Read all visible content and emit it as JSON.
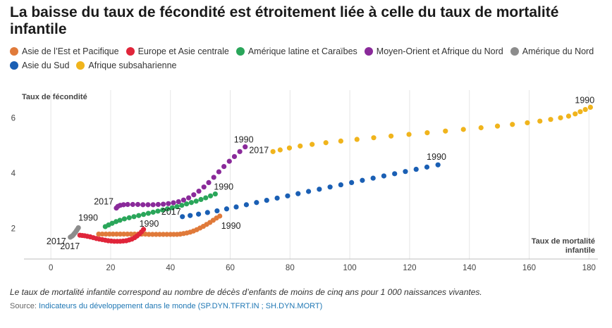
{
  "title": "La baisse du taux de fécondité est étroitement liée à celle du taux de mortalité infantile",
  "note": "Le taux de mortalité infantile correspond au nombre de décès d’enfants de moins de cinq ans pour 1 000 naissances vivantes.",
  "source_label": "Source:",
  "source_link": "Indicateurs du développement dans le monde (SP.DYN.TFRT.IN ; SH.DYN.MORT)",
  "chart_data": {
    "type": "scatter",
    "title": "La baisse du taux de fécondité est étroitement liée à celle du taux de mortalité infantile",
    "xlabel": "Taux de mortalité infantile",
    "ylabel": "Taux de fécondité",
    "xlim": [
      -9,
      183
    ],
    "ylim": [
      0.9,
      7.0
    ],
    "xticks": [
      0,
      20,
      40,
      60,
      80,
      100,
      120,
      140,
      160,
      180
    ],
    "yticks": [
      2,
      4,
      6
    ],
    "grid": "vertical",
    "legend_position": "top",
    "series": [
      {
        "name": "Asie de l’Est et Pacifique",
        "color": "#e07a3a",
        "label_start": "1990",
        "label_end": "",
        "points": [
          [
            56.5,
            2.45
          ],
          [
            55.4,
            2.38
          ],
          [
            54.3,
            2.3
          ],
          [
            53.2,
            2.22
          ],
          [
            52.1,
            2.15
          ],
          [
            51,
            2.08
          ],
          [
            49.9,
            2.02
          ],
          [
            48.8,
            1.96
          ],
          [
            47.7,
            1.91
          ],
          [
            46.6,
            1.87
          ],
          [
            45.5,
            1.84
          ],
          [
            44.4,
            1.82
          ],
          [
            43.3,
            1.8
          ],
          [
            42.2,
            1.79
          ],
          [
            41.1,
            1.79
          ],
          [
            40,
            1.79
          ],
          [
            38.8,
            1.79
          ],
          [
            37.6,
            1.79
          ],
          [
            36.4,
            1.79
          ],
          [
            35.2,
            1.79
          ],
          [
            34,
            1.79
          ],
          [
            32.8,
            1.79
          ],
          [
            31.6,
            1.8
          ],
          [
            30.4,
            1.8
          ],
          [
            29.2,
            1.8
          ],
          [
            28,
            1.8
          ],
          [
            26.8,
            1.8
          ],
          [
            25.6,
            1.8
          ],
          [
            24.4,
            1.8
          ],
          [
            23.2,
            1.8
          ],
          [
            22,
            1.8
          ],
          [
            20.8,
            1.8
          ],
          [
            19.6,
            1.8
          ],
          [
            18.4,
            1.8
          ],
          [
            17.2,
            1.8
          ],
          [
            16,
            1.8
          ]
        ]
      },
      {
        "name": "Europe et Asie centrale",
        "color": "#e0253a",
        "label_start": "1990",
        "label_end": "",
        "points": [
          [
            31,
            1.97
          ],
          [
            30.3,
            1.88
          ],
          [
            29.6,
            1.8
          ],
          [
            28.8,
            1.73
          ],
          [
            28,
            1.67
          ],
          [
            27.1,
            1.62
          ],
          [
            26.2,
            1.59
          ],
          [
            25.2,
            1.56
          ],
          [
            24.2,
            1.55
          ],
          [
            23.2,
            1.54
          ],
          [
            22.2,
            1.54
          ],
          [
            21.2,
            1.54
          ],
          [
            20.2,
            1.55
          ],
          [
            19.2,
            1.56
          ],
          [
            18.2,
            1.58
          ],
          [
            17.2,
            1.6
          ],
          [
            16.2,
            1.62
          ],
          [
            15.2,
            1.64
          ],
          [
            14.2,
            1.67
          ],
          [
            13.2,
            1.7
          ],
          [
            12.2,
            1.72
          ],
          [
            11.3,
            1.74
          ],
          [
            10.5,
            1.75
          ],
          [
            9.7,
            1.76
          ]
        ]
      },
      {
        "name": "Amérique latine et Caraïbes",
        "color": "#2aa65a",
        "label_start": "1990",
        "label_end": "",
        "points": [
          [
            55,
            3.25
          ],
          [
            53.4,
            3.18
          ],
          [
            51.8,
            3.11
          ],
          [
            50.2,
            3.05
          ],
          [
            48.6,
            2.99
          ],
          [
            47,
            2.94
          ],
          [
            45.4,
            2.89
          ],
          [
            43.8,
            2.84
          ],
          [
            42.2,
            2.79
          ],
          [
            40.6,
            2.75
          ],
          [
            39,
            2.71
          ],
          [
            37.4,
            2.67
          ],
          [
            35.8,
            2.63
          ],
          [
            34.2,
            2.59
          ],
          [
            32.6,
            2.55
          ],
          [
            31,
            2.51
          ],
          [
            29.4,
            2.47
          ],
          [
            27.8,
            2.43
          ],
          [
            26.2,
            2.39
          ],
          [
            24.6,
            2.35
          ],
          [
            23.1,
            2.3
          ],
          [
            21.8,
            2.25
          ],
          [
            20.5,
            2.19
          ],
          [
            19.3,
            2.13
          ],
          [
            18.2,
            2.07
          ]
        ]
      },
      {
        "name": "Moyen-Orient et Afrique du Nord",
        "color": "#8a2a9a",
        "label_start": "1990",
        "label_end": "2017",
        "points": [
          [
            65,
            4.95
          ],
          [
            63.2,
            4.78
          ],
          [
            61.4,
            4.6
          ],
          [
            59.7,
            4.43
          ],
          [
            57.9,
            4.24
          ],
          [
            56.2,
            4.05
          ],
          [
            54.5,
            3.85
          ],
          [
            52.8,
            3.66
          ],
          [
            51.2,
            3.5
          ],
          [
            49.5,
            3.35
          ],
          [
            47.8,
            3.22
          ],
          [
            46.1,
            3.11
          ],
          [
            44.4,
            3.03
          ],
          [
            42.7,
            2.97
          ],
          [
            41,
            2.93
          ],
          [
            39.3,
            2.9
          ],
          [
            37.6,
            2.88
          ],
          [
            35.9,
            2.87
          ],
          [
            34.2,
            2.86
          ],
          [
            32.5,
            2.86
          ],
          [
            30.8,
            2.86
          ],
          [
            29.1,
            2.87
          ],
          [
            27.4,
            2.87
          ],
          [
            25.7,
            2.87
          ],
          [
            24.3,
            2.86
          ],
          [
            23.2,
            2.84
          ],
          [
            22.4,
            2.8
          ],
          [
            21.9,
            2.74
          ]
        ]
      },
      {
        "name": "Amérique du Nord",
        "color": "#8c8c8c",
        "label_start": "1990",
        "label_end": "2017",
        "points": [
          [
            9.2,
            2.03
          ],
          [
            8.9,
            1.98
          ],
          [
            8.6,
            1.93
          ],
          [
            8.3,
            1.88
          ],
          [
            8,
            1.84
          ],
          [
            7.7,
            1.8
          ],
          [
            7.4,
            1.76
          ],
          [
            7.1,
            1.73
          ],
          [
            6.8,
            1.71
          ],
          [
            6.5,
            1.69
          ]
        ]
      },
      {
        "name": "Asie du Sud",
        "color": "#1a5fb4",
        "label_start": "1990",
        "label_end": "2017",
        "points": [
          [
            129.5,
            4.3
          ],
          [
            125.8,
            4.22
          ],
          [
            122.2,
            4.14
          ],
          [
            118.6,
            4.06
          ],
          [
            115,
            3.98
          ],
          [
            111.4,
            3.9
          ],
          [
            107.8,
            3.82
          ],
          [
            104.2,
            3.74
          ],
          [
            100.6,
            3.66
          ],
          [
            97,
            3.58
          ],
          [
            93.4,
            3.5
          ],
          [
            89.8,
            3.42
          ],
          [
            86.2,
            3.34
          ],
          [
            82.7,
            3.26
          ],
          [
            79.2,
            3.18
          ],
          [
            75.7,
            3.1
          ],
          [
            72.2,
            3.02
          ],
          [
            68.8,
            2.94
          ],
          [
            65.4,
            2.86
          ],
          [
            62,
            2.78
          ],
          [
            58.8,
            2.71
          ],
          [
            55.6,
            2.64
          ],
          [
            52.4,
            2.58
          ],
          [
            49.4,
            2.52
          ],
          [
            46.6,
            2.47
          ],
          [
            44,
            2.43
          ]
        ]
      },
      {
        "name": "Afrique subsaharienne",
        "color": "#f0b41c",
        "label_start": "1990",
        "label_end": "2017",
        "points": [
          [
            180.5,
            6.38
          ],
          [
            178.8,
            6.3
          ],
          [
            177.1,
            6.22
          ],
          [
            175.4,
            6.14
          ],
          [
            173.2,
            6.06
          ],
          [
            170.5,
            6.0
          ],
          [
            167.2,
            5.94
          ],
          [
            163.6,
            5.88
          ],
          [
            159.4,
            5.82
          ],
          [
            154.4,
            5.76
          ],
          [
            149.4,
            5.7
          ],
          [
            143.9,
            5.64
          ],
          [
            138,
            5.58
          ],
          [
            132,
            5.52
          ],
          [
            125.9,
            5.46
          ],
          [
            119.8,
            5.4
          ],
          [
            113.8,
            5.34
          ],
          [
            108,
            5.28
          ],
          [
            102.4,
            5.22
          ],
          [
            97,
            5.16
          ],
          [
            92,
            5.1
          ],
          [
            87.4,
            5.04
          ],
          [
            83.4,
            4.98
          ],
          [
            79.8,
            4.91
          ],
          [
            76.7,
            4.84
          ],
          [
            74.3,
            4.78
          ]
        ]
      }
    ],
    "annotations": [
      {
        "text": "1990",
        "series": "Asie de l’Est et Pacifique",
        "point": "start"
      },
      {
        "text": "1990",
        "series": "Europe et Asie centrale",
        "point": "start"
      },
      {
        "text": "2017",
        "series": "Europe et Asie centrale",
        "point": "end"
      },
      {
        "text": "1990",
        "series": "Amérique latine et Caraïbes",
        "point": "start"
      },
      {
        "text": "1990",
        "series": "Moyen-Orient et Afrique du Nord",
        "point": "start"
      },
      {
        "text": "2017",
        "series": "Moyen-Orient et Afrique du Nord",
        "point": "end"
      },
      {
        "text": "1990",
        "series": "Amérique du Nord",
        "point": "start"
      },
      {
        "text": "2017",
        "series": "Amérique du Nord",
        "point": "end"
      },
      {
        "text": "1990",
        "series": "Asie du Sud",
        "point": "start"
      },
      {
        "text": "2017",
        "series": "Asie du Sud",
        "point": "end"
      },
      {
        "text": "1990",
        "series": "Afrique subsaharienne",
        "point": "start"
      },
      {
        "text": "2017",
        "series": "Afrique subsaharienne",
        "point": "end"
      }
    ]
  }
}
